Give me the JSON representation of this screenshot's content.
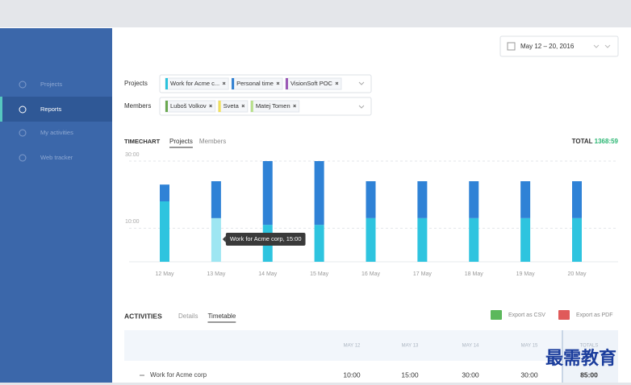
{
  "sidebar": {
    "items": [
      {
        "label": "Projects",
        "active": false
      },
      {
        "label": "Reports",
        "active": true
      },
      {
        "label": "My activities",
        "active": false
      },
      {
        "label": "Web tracker",
        "active": false
      }
    ]
  },
  "date_range": "May 12 – 20, 2016",
  "filters": {
    "projects_label": "Projects",
    "projects": [
      {
        "name": "Work for Acme c...",
        "color": "#2bc3dc"
      },
      {
        "name": "Personal time",
        "color": "#2f7fd1"
      },
      {
        "name": "VisionSoft POC",
        "color": "#9b59b6"
      }
    ],
    "members_label": "Members",
    "members": [
      {
        "name": "Luboš Volkov",
        "color": "#6aa84f"
      },
      {
        "name": "Sveta",
        "color": "#f1e05a"
      },
      {
        "name": "Matej Tomen",
        "color": "#b7e08a"
      }
    ]
  },
  "timechart": {
    "title": "TIMECHART",
    "tabs": [
      {
        "label": "Projects",
        "active": true
      },
      {
        "label": "Members",
        "active": false
      }
    ],
    "total_label": "TOTAL",
    "total": "1368:59"
  },
  "chart_data": {
    "type": "bar",
    "stacked": true,
    "categories": [
      "12 May",
      "13 May",
      "14 May",
      "15 May",
      "16 May",
      "17 May",
      "18 May",
      "19 May",
      "20 May"
    ],
    "series": [
      {
        "name": "Work for Acme corp",
        "color": "#2ec4df",
        "values": [
          18,
          13,
          11,
          11,
          13,
          13,
          13,
          13,
          13
        ]
      },
      {
        "name": "Personal time",
        "color": "#2f82d6",
        "values": [
          5,
          11,
          19,
          19,
          11,
          11,
          11,
          11,
          11
        ]
      }
    ],
    "ylim": [
      0,
      30
    ],
    "yticks": [
      {
        "value": 10,
        "label": "10:00"
      },
      {
        "value": 30,
        "label": "30:00"
      }
    ],
    "grid": true,
    "tooltip": "Work for Acme corp, 15:00"
  },
  "activities": {
    "title": "ACTIVITIES",
    "tabs": [
      {
        "label": "Details",
        "active": false
      },
      {
        "label": "Timetable",
        "active": true
      }
    ],
    "exports": [
      {
        "label": "Export as CSV",
        "color": "#5cb85c"
      },
      {
        "label": "Export as PDF",
        "color": "#e05a5a"
      }
    ],
    "columns": [
      "MAY 12",
      "MAY 13",
      "MAY 14",
      "MAY 15",
      "TOTALS"
    ],
    "rows": [
      {
        "name": "Work for Acme corp",
        "cells": [
          "10:00",
          "15:00",
          "30:00",
          "30:00",
          "85:00"
        ]
      }
    ]
  },
  "watermark": "最需教育"
}
